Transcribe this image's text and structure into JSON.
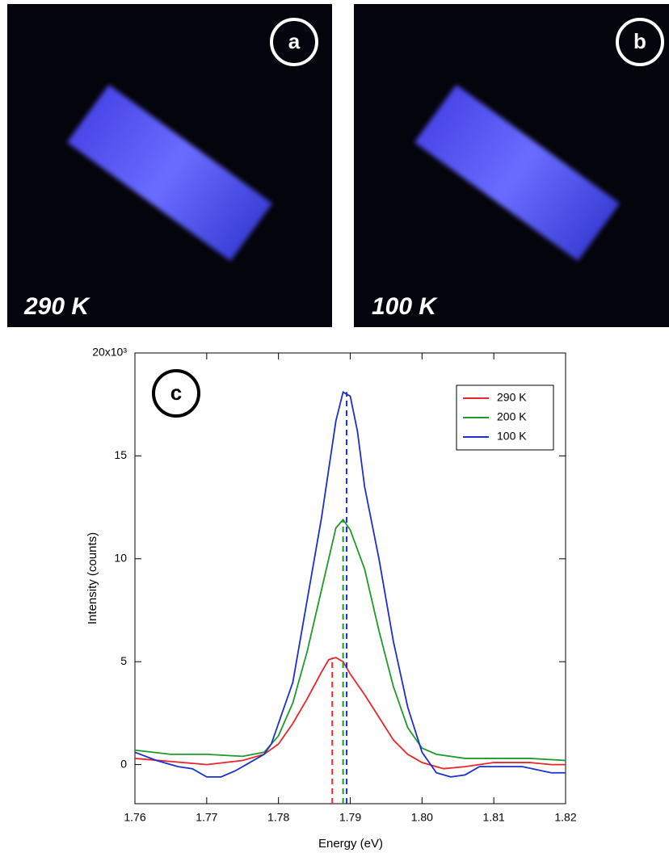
{
  "panels": {
    "a": {
      "label": "a",
      "temperature": "290 K"
    },
    "b": {
      "label": "b",
      "temperature": "100 K"
    }
  },
  "chart_data": {
    "type": "line",
    "label": "c",
    "xlabel": "Energy (eV)",
    "ylabel": "Intensity (counts)",
    "xlim": [
      1.76,
      1.82
    ],
    "xticks": [
      1.76,
      1.77,
      1.78,
      1.79,
      {
        "value": 1.8,
        "label": "1.80"
      },
      1.81,
      1.82
    ],
    "ylim": [
      -1.9,
      20
    ],
    "yticks": [
      0,
      5,
      10,
      15,
      {
        "value": 20,
        "label": "20x10³"
      }
    ],
    "legend": "top-right",
    "series": [
      {
        "name": "290 K",
        "color": "#e8262b",
        "x": [
          1.76,
          1.77,
          1.775,
          1.778,
          1.78,
          1.782,
          1.784,
          1.786,
          1.787,
          1.788,
          1.789,
          1.79,
          1.792,
          1.794,
          1.796,
          1.798,
          1.8,
          1.803,
          1.806,
          1.81,
          1.815,
          1.818,
          1.82
        ],
        "values": [
          0.3,
          0.0,
          0.2,
          0.5,
          1.0,
          2.0,
          3.2,
          4.5,
          5.1,
          5.2,
          5.0,
          4.4,
          3.4,
          2.3,
          1.2,
          0.5,
          0.1,
          -0.2,
          -0.1,
          0.1,
          0.1,
          0.0,
          0.0
        ],
        "peak": {
          "x": 1.7875,
          "y": 5.2
        }
      },
      {
        "name": "200 K",
        "color": "#1f9a2a",
        "x": [
          1.76,
          1.765,
          1.77,
          1.775,
          1.778,
          1.78,
          1.782,
          1.784,
          1.786,
          1.788,
          1.789,
          1.79,
          1.792,
          1.794,
          1.796,
          1.798,
          1.8,
          1.802,
          1.806,
          1.81,
          1.815,
          1.82
        ],
        "values": [
          0.7,
          0.5,
          0.5,
          0.4,
          0.6,
          1.4,
          3.0,
          5.5,
          8.5,
          11.5,
          11.9,
          11.4,
          9.5,
          6.5,
          3.8,
          1.8,
          0.8,
          0.5,
          0.3,
          0.3,
          0.3,
          0.2
        ],
        "peak": {
          "x": 1.789,
          "y": 11.9
        }
      },
      {
        "name": "100 K",
        "color": "#1c2fd0",
        "x": [
          1.76,
          1.763,
          1.766,
          1.768,
          1.77,
          1.772,
          1.774,
          1.776,
          1.778,
          1.779,
          1.78,
          1.782,
          1.784,
          1.786,
          1.788,
          1.789,
          1.79,
          1.791,
          1.792,
          1.794,
          1.796,
          1.798,
          1.8,
          1.802,
          1.804,
          1.806,
          1.808,
          1.81,
          1.814,
          1.818,
          1.82
        ],
        "values": [
          0.6,
          0.2,
          -0.1,
          -0.2,
          -0.6,
          -0.6,
          -0.3,
          0.1,
          0.5,
          1.0,
          2.0,
          4.0,
          8.0,
          12.0,
          16.7,
          18.1,
          17.9,
          16.2,
          13.5,
          10.0,
          6.0,
          2.8,
          0.6,
          -0.4,
          -0.6,
          -0.5,
          -0.1,
          -0.1,
          -0.1,
          -0.4,
          -0.4
        ],
        "peak": {
          "x": 1.7895,
          "y": 18.1
        }
      }
    ]
  }
}
